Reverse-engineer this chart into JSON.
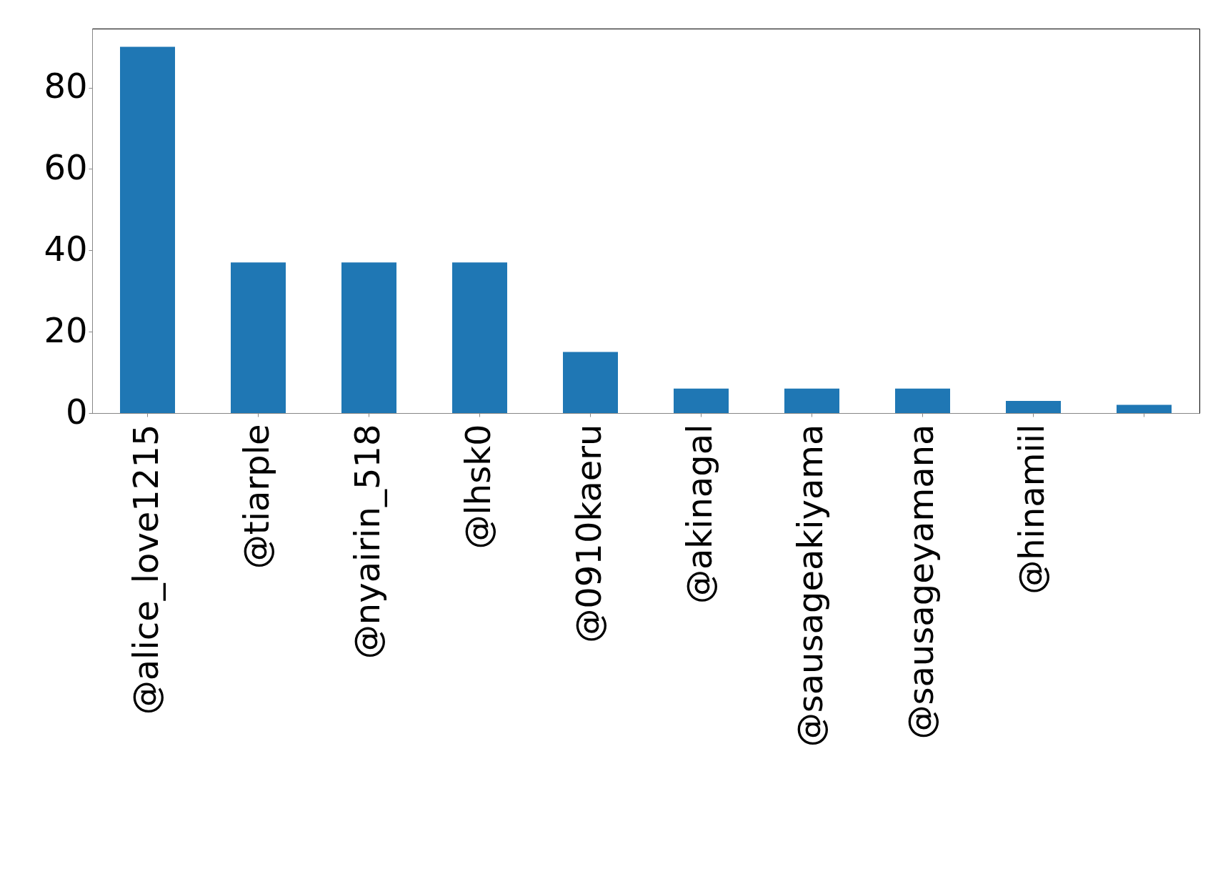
{
  "chart_data": {
    "type": "bar",
    "categories": [
      "@alice_love1215",
      "@tiarple",
      "@nyairin_518",
      "@lhsk0",
      "@0910kaeru",
      "@akinagal",
      "@sausageakiyama",
      "@sausageyamana",
      "@hinamiil",
      null
    ],
    "values": [
      90,
      37,
      37,
      37,
      15,
      6,
      6,
      6,
      3,
      2
    ],
    "color": "#1f77b4",
    "ylim": [
      0,
      94.5
    ],
    "yticks": [
      0,
      20,
      40,
      60,
      80
    ],
    "grid": false
  }
}
